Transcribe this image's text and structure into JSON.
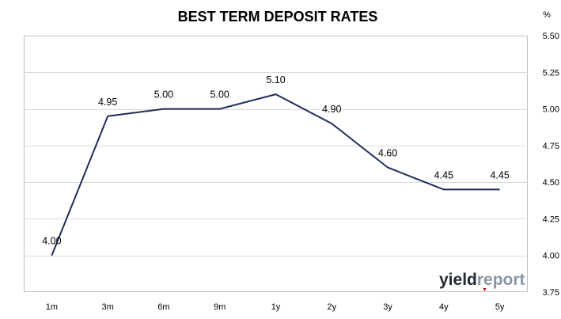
{
  "chart_data": {
    "type": "line",
    "title": "BEST TERM DEPOSIT RATES",
    "y_unit": "%",
    "categories": [
      "1m",
      "3m",
      "6m",
      "9m",
      "1y",
      "2y",
      "3y",
      "4y",
      "5y"
    ],
    "series": [
      {
        "values": [
          4.0,
          4.95,
          5.0,
          5.0,
          5.1,
          4.9,
          4.6,
          4.45,
          4.45
        ],
        "data_labels": [
          "4.00",
          "4.95",
          "5.00",
          "5.00",
          "5.10",
          "4.90",
          "4.60",
          "4.45",
          "4.45"
        ]
      }
    ],
    "ylim": [
      3.75,
      5.5
    ],
    "y_ticks": [
      "3.75",
      "4.00",
      "4.25",
      "4.50",
      "4.75",
      "5.00",
      "5.25",
      "5.50"
    ],
    "y_axis_side": "right",
    "grid": true,
    "line_color": "#1f2d5a"
  },
  "logo": {
    "part1": "yield",
    "part2": "report"
  },
  "colors": {
    "grid": "#d9d9d9",
    "border": "#bfbfbf",
    "logo_accent": "#c00000"
  }
}
